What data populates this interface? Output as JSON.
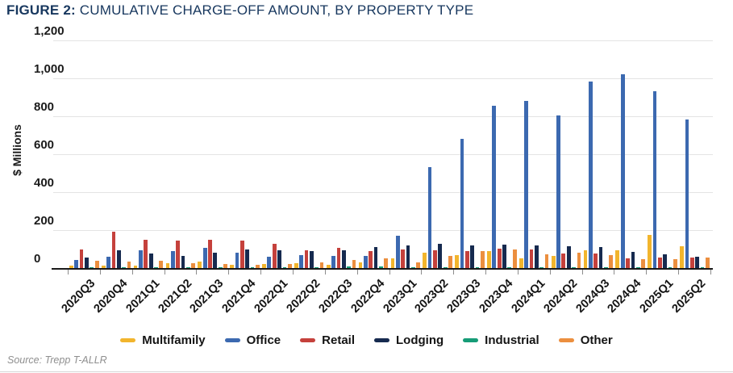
{
  "figure": {
    "title_prefix": "FIGURE 2:",
    "title_rest": " CUMULATIVE CHARGE-OFF AMOUNT, BY PROPERTY TYPE",
    "source_note": "Source: Trepp T-ALLR"
  },
  "chart_data": {
    "type": "bar",
    "title": "FIGURE 2: CUMULATIVE CHARGE-OFF AMOUNT, BY PROPERTY TYPE",
    "xlabel": "",
    "ylabel": "$ Millions",
    "ylim": [
      0,
      1200
    ],
    "ytick_values": [
      0,
      200,
      400,
      600,
      800,
      1000,
      1200
    ],
    "ytick_labels": [
      "0",
      "200",
      "400",
      "600",
      "800",
      "1,000",
      "1,200"
    ],
    "grid": true,
    "legend_position": "bottom",
    "categories": [
      "2020Q3",
      "2020Q4",
      "2021Q1",
      "2021Q2",
      "2021Q3",
      "2021Q4",
      "2022Q1",
      "2022Q2",
      "2022Q3",
      "2022Q4",
      "2023Q1",
      "2023Q2",
      "2023Q3",
      "2023Q4",
      "2024Q1",
      "2024Q2",
      "2024Q3",
      "2024Q4",
      "2025Q1",
      "2025Q2"
    ],
    "series": [
      {
        "name": "Multifamily",
        "color": "#F2B52D",
        "values": [
          14,
          14,
          13,
          26,
          33,
          19,
          20,
          24,
          15,
          30,
          50,
          80,
          67,
          88,
          50,
          64,
          95,
          93,
          173,
          115
        ]
      },
      {
        "name": "Office",
        "color": "#3C69B0",
        "values": [
          43,
          60,
          95,
          88,
          105,
          80,
          59,
          70,
          63,
          64,
          172,
          530,
          680,
          855,
          880,
          805,
          985,
          1020,
          930,
          785
        ]
      },
      {
        "name": "Retail",
        "color": "#C5413C",
        "values": [
          100,
          190,
          150,
          146,
          148,
          146,
          127,
          93,
          105,
          88,
          100,
          92,
          90,
          104,
          100,
          78,
          75,
          53,
          57,
          57
        ]
      },
      {
        "name": "Lodging",
        "color": "#162A4F",
        "values": [
          54,
          93,
          78,
          64,
          80,
          100,
          93,
          90,
          95,
          112,
          118,
          128,
          118,
          124,
          121,
          117,
          111,
          83,
          72,
          60
        ]
      },
      {
        "name": "Industrial",
        "color": "#169C77",
        "values": [
          2,
          2,
          2,
          2,
          3,
          3,
          3,
          3,
          8,
          7,
          3,
          3,
          3,
          4,
          4,
          4,
          4,
          4,
          4,
          4
        ]
      },
      {
        "name": "Other",
        "color": "#EC8F3F",
        "values": [
          40,
          36,
          37,
          24,
          20,
          17,
          21,
          31,
          43,
          50,
          30,
          64,
          90,
          98,
          74,
          81,
          68,
          48,
          47,
          55
        ]
      }
    ]
  }
}
